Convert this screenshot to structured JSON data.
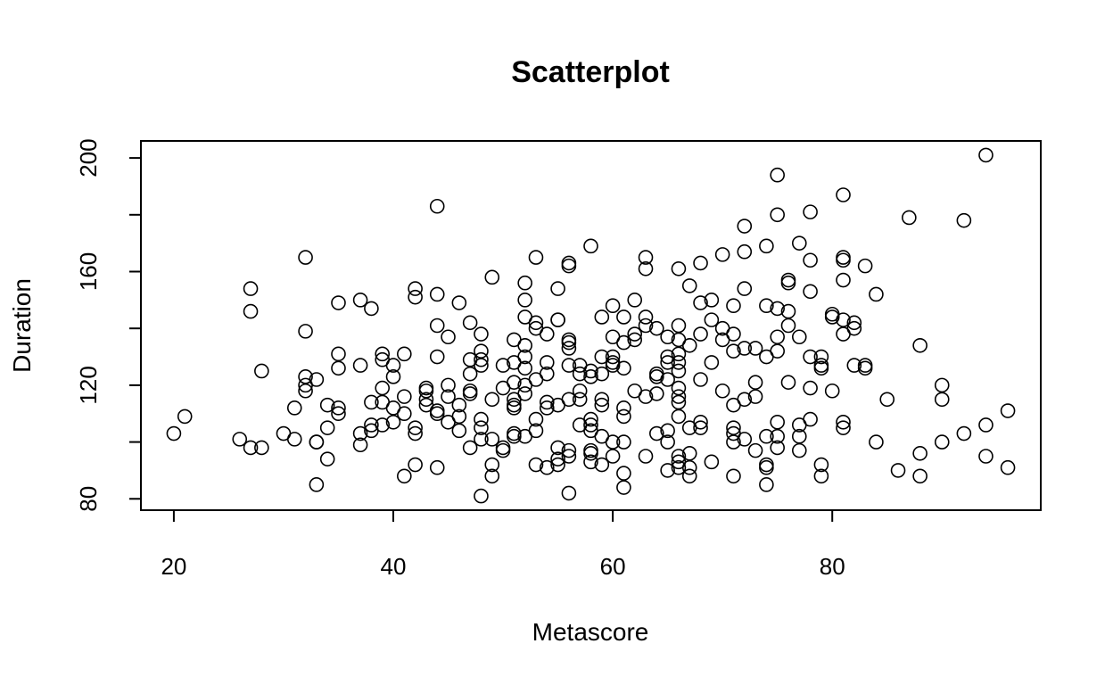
{
  "chart_data": {
    "type": "scatter",
    "title": "Scatterplot",
    "xlabel": "Metascore",
    "ylabel": "Duration",
    "xlim": [
      17,
      99
    ],
    "ylim": [
      76,
      206
    ],
    "xticks": [
      20,
      40,
      60,
      80
    ],
    "yticks": [
      80,
      120,
      160,
      200
    ],
    "grid": false,
    "points": [
      [
        20,
        103
      ],
      [
        21,
        109
      ],
      [
        26,
        101
      ],
      [
        27,
        98
      ],
      [
        27,
        146
      ],
      [
        27,
        154
      ],
      [
        28,
        125
      ],
      [
        28,
        98
      ],
      [
        30,
        103
      ],
      [
        31,
        101
      ],
      [
        31,
        112
      ],
      [
        32,
        165
      ],
      [
        32,
        139
      ],
      [
        32,
        123
      ],
      [
        32,
        120
      ],
      [
        32,
        118
      ],
      [
        33,
        122
      ],
      [
        33,
        100
      ],
      [
        33,
        100
      ],
      [
        33,
        85
      ],
      [
        34,
        113
      ],
      [
        34,
        105
      ],
      [
        34,
        94
      ],
      [
        35,
        149
      ],
      [
        35,
        131
      ],
      [
        35,
        126
      ],
      [
        35,
        112
      ],
      [
        35,
        110
      ],
      [
        37,
        150
      ],
      [
        37,
        127
      ],
      [
        37,
        103
      ],
      [
        37,
        99
      ],
      [
        38,
        147
      ],
      [
        38,
        114
      ],
      [
        38,
        106
      ],
      [
        38,
        104
      ],
      [
        39,
        131
      ],
      [
        39,
        129
      ],
      [
        39,
        119
      ],
      [
        39,
        114
      ],
      [
        39,
        106
      ],
      [
        40,
        127
      ],
      [
        40,
        123
      ],
      [
        40,
        112
      ],
      [
        40,
        107
      ],
      [
        41,
        131
      ],
      [
        41,
        116
      ],
      [
        41,
        110
      ],
      [
        41,
        88
      ],
      [
        42,
        154
      ],
      [
        42,
        151
      ],
      [
        42,
        105
      ],
      [
        42,
        103
      ],
      [
        42,
        92
      ],
      [
        43,
        119
      ],
      [
        43,
        118
      ],
      [
        43,
        115
      ],
      [
        43,
        113
      ],
      [
        44,
        183
      ],
      [
        44,
        152
      ],
      [
        44,
        141
      ],
      [
        44,
        130
      ],
      [
        44,
        111
      ],
      [
        44,
        110
      ],
      [
        44,
        91
      ],
      [
        45,
        137
      ],
      [
        45,
        120
      ],
      [
        45,
        116
      ],
      [
        45,
        107
      ],
      [
        46,
        149
      ],
      [
        46,
        113
      ],
      [
        46,
        109
      ],
      [
        46,
        104
      ],
      [
        47,
        142
      ],
      [
        47,
        129
      ],
      [
        47,
        124
      ],
      [
        47,
        118
      ],
      [
        47,
        117
      ],
      [
        47,
        98
      ],
      [
        48,
        138
      ],
      [
        48,
        132
      ],
      [
        48,
        129
      ],
      [
        48,
        127
      ],
      [
        48,
        108
      ],
      [
        48,
        105
      ],
      [
        48,
        101
      ],
      [
        48,
        81
      ],
      [
        49,
        158
      ],
      [
        49,
        115
      ],
      [
        49,
        101
      ],
      [
        49,
        92
      ],
      [
        49,
        88
      ],
      [
        50,
        127
      ],
      [
        50,
        119
      ],
      [
        50,
        98
      ],
      [
        50,
        97
      ],
      [
        51,
        136
      ],
      [
        51,
        128
      ],
      [
        51,
        121
      ],
      [
        51,
        115
      ],
      [
        51,
        113
      ],
      [
        51,
        112
      ],
      [
        51,
        103
      ],
      [
        51,
        102
      ],
      [
        52,
        156
      ],
      [
        52,
        150
      ],
      [
        52,
        144
      ],
      [
        52,
        134
      ],
      [
        52,
        130
      ],
      [
        52,
        126
      ],
      [
        52,
        120
      ],
      [
        52,
        117
      ],
      [
        52,
        102
      ],
      [
        53,
        165
      ],
      [
        53,
        142
      ],
      [
        53,
        140
      ],
      [
        53,
        122
      ],
      [
        53,
        108
      ],
      [
        53,
        104
      ],
      [
        53,
        92
      ],
      [
        54,
        138
      ],
      [
        54,
        128
      ],
      [
        54,
        124
      ],
      [
        54,
        114
      ],
      [
        54,
        112
      ],
      [
        54,
        91
      ],
      [
        55,
        154
      ],
      [
        55,
        143
      ],
      [
        55,
        143
      ],
      [
        55,
        113
      ],
      [
        55,
        98
      ],
      [
        55,
        94
      ],
      [
        55,
        92
      ],
      [
        56,
        163
      ],
      [
        56,
        162
      ],
      [
        56,
        136
      ],
      [
        56,
        135
      ],
      [
        56,
        133
      ],
      [
        56,
        127
      ],
      [
        56,
        115
      ],
      [
        56,
        97
      ],
      [
        56,
        95
      ],
      [
        56,
        82
      ],
      [
        57,
        127
      ],
      [
        57,
        124
      ],
      [
        57,
        118
      ],
      [
        57,
        115
      ],
      [
        57,
        106
      ],
      [
        58,
        169
      ],
      [
        58,
        125
      ],
      [
        58,
        123
      ],
      [
        58,
        108
      ],
      [
        58,
        106
      ],
      [
        58,
        104
      ],
      [
        58,
        97
      ],
      [
        58,
        96
      ],
      [
        58,
        93
      ],
      [
        59,
        144
      ],
      [
        59,
        130
      ],
      [
        59,
        124
      ],
      [
        59,
        115
      ],
      [
        59,
        113
      ],
      [
        59,
        102
      ],
      [
        59,
        92
      ],
      [
        60,
        148
      ],
      [
        60,
        137
      ],
      [
        60,
        130
      ],
      [
        60,
        128
      ],
      [
        60,
        127
      ],
      [
        60,
        100
      ],
      [
        60,
        95
      ],
      [
        61,
        144
      ],
      [
        61,
        135
      ],
      [
        61,
        126
      ],
      [
        61,
        112
      ],
      [
        61,
        109
      ],
      [
        61,
        100
      ],
      [
        61,
        89
      ],
      [
        61,
        84
      ],
      [
        62,
        150
      ],
      [
        62,
        138
      ],
      [
        62,
        136
      ],
      [
        62,
        118
      ],
      [
        63,
        165
      ],
      [
        63,
        161
      ],
      [
        63,
        144
      ],
      [
        63,
        141
      ],
      [
        63,
        116
      ],
      [
        63,
        95
      ],
      [
        64,
        140
      ],
      [
        64,
        124
      ],
      [
        64,
        123
      ],
      [
        64,
        117
      ],
      [
        64,
        103
      ],
      [
        65,
        137
      ],
      [
        65,
        130
      ],
      [
        65,
        128
      ],
      [
        65,
        122
      ],
      [
        65,
        104
      ],
      [
        65,
        100
      ],
      [
        65,
        90
      ],
      [
        66,
        161
      ],
      [
        66,
        141
      ],
      [
        66,
        136
      ],
      [
        66,
        131
      ],
      [
        66,
        128
      ],
      [
        66,
        125
      ],
      [
        66,
        119
      ],
      [
        66,
        116
      ],
      [
        66,
        114
      ],
      [
        66,
        109
      ],
      [
        66,
        95
      ],
      [
        66,
        93
      ],
      [
        66,
        91
      ],
      [
        67,
        155
      ],
      [
        67,
        134
      ],
      [
        67,
        105
      ],
      [
        67,
        96
      ],
      [
        67,
        91
      ],
      [
        67,
        88
      ],
      [
        68,
        163
      ],
      [
        68,
        149
      ],
      [
        68,
        138
      ],
      [
        68,
        122
      ],
      [
        68,
        107
      ],
      [
        68,
        105
      ],
      [
        69,
        150
      ],
      [
        69,
        143
      ],
      [
        69,
        128
      ],
      [
        69,
        93
      ],
      [
        70,
        166
      ],
      [
        70,
        140
      ],
      [
        70,
        136
      ],
      [
        70,
        118
      ],
      [
        71,
        148
      ],
      [
        71,
        138
      ],
      [
        71,
        132
      ],
      [
        71,
        113
      ],
      [
        71,
        105
      ],
      [
        71,
        103
      ],
      [
        71,
        100
      ],
      [
        71,
        88
      ],
      [
        72,
        176
      ],
      [
        72,
        167
      ],
      [
        72,
        154
      ],
      [
        72,
        133
      ],
      [
        72,
        115
      ],
      [
        72,
        101
      ],
      [
        73,
        133
      ],
      [
        73,
        121
      ],
      [
        73,
        116
      ],
      [
        73,
        97
      ],
      [
        74,
        169
      ],
      [
        74,
        148
      ],
      [
        74,
        130
      ],
      [
        74,
        102
      ],
      [
        74,
        92
      ],
      [
        74,
        91
      ],
      [
        74,
        85
      ],
      [
        75,
        194
      ],
      [
        75,
        180
      ],
      [
        75,
        147
      ],
      [
        75,
        137
      ],
      [
        75,
        132
      ],
      [
        75,
        107
      ],
      [
        75,
        102
      ],
      [
        75,
        98
      ],
      [
        76,
        157
      ],
      [
        76,
        156
      ],
      [
        76,
        146
      ],
      [
        76,
        141
      ],
      [
        76,
        121
      ],
      [
        77,
        170
      ],
      [
        77,
        137
      ],
      [
        77,
        106
      ],
      [
        77,
        102
      ],
      [
        77,
        97
      ],
      [
        78,
        181
      ],
      [
        78,
        164
      ],
      [
        78,
        153
      ],
      [
        78,
        130
      ],
      [
        78,
        119
      ],
      [
        78,
        108
      ],
      [
        79,
        130
      ],
      [
        79,
        127
      ],
      [
        79,
        126
      ],
      [
        79,
        92
      ],
      [
        79,
        88
      ],
      [
        80,
        145
      ],
      [
        80,
        144
      ],
      [
        80,
        118
      ],
      [
        81,
        187
      ],
      [
        81,
        165
      ],
      [
        81,
        164
      ],
      [
        81,
        157
      ],
      [
        81,
        143
      ],
      [
        81,
        138
      ],
      [
        81,
        107
      ],
      [
        81,
        105
      ],
      [
        82,
        142
      ],
      [
        82,
        140
      ],
      [
        82,
        127
      ],
      [
        83,
        162
      ],
      [
        83,
        127
      ],
      [
        83,
        126
      ],
      [
        84,
        152
      ],
      [
        84,
        100
      ],
      [
        85,
        115
      ],
      [
        86,
        90
      ],
      [
        87,
        179
      ],
      [
        88,
        134
      ],
      [
        88,
        96
      ],
      [
        88,
        88
      ],
      [
        90,
        120
      ],
      [
        90,
        115
      ],
      [
        90,
        100
      ],
      [
        92,
        178
      ],
      [
        92,
        103
      ],
      [
        94,
        201
      ],
      [
        94,
        106
      ],
      [
        94,
        95
      ],
      [
        96,
        111
      ],
      [
        96,
        91
      ]
    ]
  }
}
